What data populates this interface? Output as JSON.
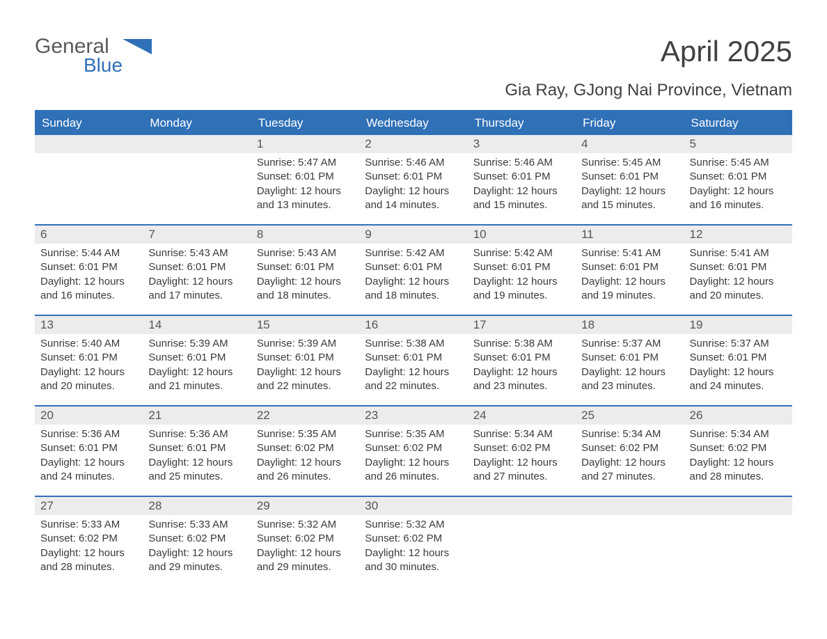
{
  "logo": {
    "top": "General",
    "bottom": "Blue",
    "flag_color": "#2f70b7"
  },
  "title": "April 2025",
  "subtitle": "Gia Ray, GJong Nai Province, Vietnam",
  "colors": {
    "header_bg": "#2f70b7",
    "header_text": "#ffffff",
    "daynum_bg": "#ececec",
    "body_text": "#3a3a3a",
    "page_bg": "#ffffff"
  },
  "day_headers": [
    "Sunday",
    "Monday",
    "Tuesday",
    "Wednesday",
    "Thursday",
    "Friday",
    "Saturday"
  ],
  "weeks": [
    [
      {
        "n": "",
        "sr": "",
        "ss": "",
        "dl": ""
      },
      {
        "n": "",
        "sr": "",
        "ss": "",
        "dl": ""
      },
      {
        "n": "1",
        "sr": "5:47 AM",
        "ss": "6:01 PM",
        "dl": "12 hours and 13 minutes."
      },
      {
        "n": "2",
        "sr": "5:46 AM",
        "ss": "6:01 PM",
        "dl": "12 hours and 14 minutes."
      },
      {
        "n": "3",
        "sr": "5:46 AM",
        "ss": "6:01 PM",
        "dl": "12 hours and 15 minutes."
      },
      {
        "n": "4",
        "sr": "5:45 AM",
        "ss": "6:01 PM",
        "dl": "12 hours and 15 minutes."
      },
      {
        "n": "5",
        "sr": "5:45 AM",
        "ss": "6:01 PM",
        "dl": "12 hours and 16 minutes."
      }
    ],
    [
      {
        "n": "6",
        "sr": "5:44 AM",
        "ss": "6:01 PM",
        "dl": "12 hours and 16 minutes."
      },
      {
        "n": "7",
        "sr": "5:43 AM",
        "ss": "6:01 PM",
        "dl": "12 hours and 17 minutes."
      },
      {
        "n": "8",
        "sr": "5:43 AM",
        "ss": "6:01 PM",
        "dl": "12 hours and 18 minutes."
      },
      {
        "n": "9",
        "sr": "5:42 AM",
        "ss": "6:01 PM",
        "dl": "12 hours and 18 minutes."
      },
      {
        "n": "10",
        "sr": "5:42 AM",
        "ss": "6:01 PM",
        "dl": "12 hours and 19 minutes."
      },
      {
        "n": "11",
        "sr": "5:41 AM",
        "ss": "6:01 PM",
        "dl": "12 hours and 19 minutes."
      },
      {
        "n": "12",
        "sr": "5:41 AM",
        "ss": "6:01 PM",
        "dl": "12 hours and 20 minutes."
      }
    ],
    [
      {
        "n": "13",
        "sr": "5:40 AM",
        "ss": "6:01 PM",
        "dl": "12 hours and 20 minutes."
      },
      {
        "n": "14",
        "sr": "5:39 AM",
        "ss": "6:01 PM",
        "dl": "12 hours and 21 minutes."
      },
      {
        "n": "15",
        "sr": "5:39 AM",
        "ss": "6:01 PM",
        "dl": "12 hours and 22 minutes."
      },
      {
        "n": "16",
        "sr": "5:38 AM",
        "ss": "6:01 PM",
        "dl": "12 hours and 22 minutes."
      },
      {
        "n": "17",
        "sr": "5:38 AM",
        "ss": "6:01 PM",
        "dl": "12 hours and 23 minutes."
      },
      {
        "n": "18",
        "sr": "5:37 AM",
        "ss": "6:01 PM",
        "dl": "12 hours and 23 minutes."
      },
      {
        "n": "19",
        "sr": "5:37 AM",
        "ss": "6:01 PM",
        "dl": "12 hours and 24 minutes."
      }
    ],
    [
      {
        "n": "20",
        "sr": "5:36 AM",
        "ss": "6:01 PM",
        "dl": "12 hours and 24 minutes."
      },
      {
        "n": "21",
        "sr": "5:36 AM",
        "ss": "6:01 PM",
        "dl": "12 hours and 25 minutes."
      },
      {
        "n": "22",
        "sr": "5:35 AM",
        "ss": "6:02 PM",
        "dl": "12 hours and 26 minutes."
      },
      {
        "n": "23",
        "sr": "5:35 AM",
        "ss": "6:02 PM",
        "dl": "12 hours and 26 minutes."
      },
      {
        "n": "24",
        "sr": "5:34 AM",
        "ss": "6:02 PM",
        "dl": "12 hours and 27 minutes."
      },
      {
        "n": "25",
        "sr": "5:34 AM",
        "ss": "6:02 PM",
        "dl": "12 hours and 27 minutes."
      },
      {
        "n": "26",
        "sr": "5:34 AM",
        "ss": "6:02 PM",
        "dl": "12 hours and 28 minutes."
      }
    ],
    [
      {
        "n": "27",
        "sr": "5:33 AM",
        "ss": "6:02 PM",
        "dl": "12 hours and 28 minutes."
      },
      {
        "n": "28",
        "sr": "5:33 AM",
        "ss": "6:02 PM",
        "dl": "12 hours and 29 minutes."
      },
      {
        "n": "29",
        "sr": "5:32 AM",
        "ss": "6:02 PM",
        "dl": "12 hours and 29 minutes."
      },
      {
        "n": "30",
        "sr": "5:32 AM",
        "ss": "6:02 PM",
        "dl": "12 hours and 30 minutes."
      },
      {
        "n": "",
        "sr": "",
        "ss": "",
        "dl": ""
      },
      {
        "n": "",
        "sr": "",
        "ss": "",
        "dl": ""
      },
      {
        "n": "",
        "sr": "",
        "ss": "",
        "dl": ""
      }
    ]
  ],
  "labels": {
    "sunrise": "Sunrise: ",
    "sunset": "Sunset: ",
    "daylight": "Daylight: "
  }
}
